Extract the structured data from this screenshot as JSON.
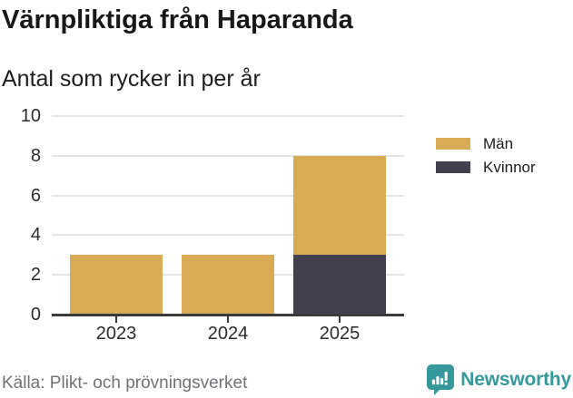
{
  "title": "Värnpliktiga från Haparanda",
  "subtitle": "Antal som rycker in per år",
  "footer": {
    "source": "Källa: Plikt- och prövningsverket",
    "brand": "Newsworthy"
  },
  "colors": {
    "men_gold": "#d9ab55",
    "women_dark": "#423f4e",
    "brand_teal": "#35999c",
    "gridline": "#e4e4e4",
    "axis_line": "#3a3a3a",
    "axis_text": "#2b2b2b",
    "source_gray": "#6f7277"
  },
  "icons": {
    "brand_logo": "bar-chart-speech-bubble-icon"
  },
  "chart_data": {
    "type": "bar",
    "stacked": true,
    "title": "Värnpliktiga från Haparanda",
    "subtitle": "Antal som rycker in per år",
    "categories": [
      "2023",
      "2024",
      "2025"
    ],
    "series": [
      {
        "name": "Kvinnor",
        "color": "#423f4e",
        "values": [
          0,
          0,
          3
        ]
      },
      {
        "name": "Män",
        "color": "#d9ab55",
        "values": [
          3,
          3,
          5
        ]
      }
    ],
    "stack_totals": [
      3,
      3,
      8
    ],
    "legend": [
      {
        "label": "Män",
        "color": "#d9ab55"
      },
      {
        "label": "Kvinnor",
        "color": "#423f4e"
      }
    ],
    "legend_position": "right",
    "xlabel": "",
    "ylabel": "",
    "ylim": [
      0,
      10
    ],
    "yticks": [
      0,
      2,
      4,
      6,
      8,
      10
    ],
    "grid": true
  }
}
